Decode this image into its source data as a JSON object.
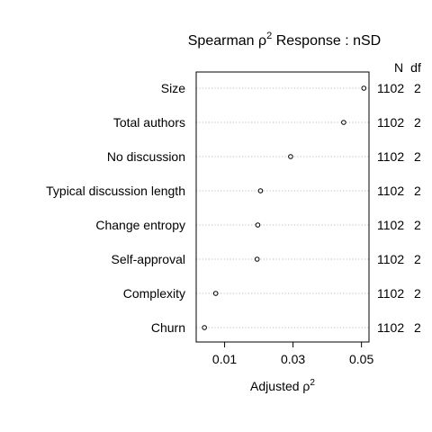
{
  "chart_data": {
    "type": "dot",
    "title": {
      "part1": "Spearman",
      "rho": "ρ",
      "sup": "2",
      "part2": "Response : nSD"
    },
    "xlabel": {
      "text": "Adjusted ",
      "rho": "ρ",
      "sup": "2"
    },
    "xlim": [
      0.0017,
      0.0522
    ],
    "xticks": [
      0.01,
      0.03,
      0.05
    ],
    "xtick_labels": [
      "0.01",
      "0.03",
      "0.05"
    ],
    "right_headers": {
      "n": "N",
      "df": "df"
    },
    "categories": [
      "Size",
      "Total authors",
      "No discussion",
      "Typical discussion length",
      "Change entropy",
      "Self-approval",
      "Complexity",
      "Churn"
    ],
    "values": [
      0.0507,
      0.0448,
      0.0293,
      0.0205,
      0.0197,
      0.0195,
      0.0074,
      0.0041
    ],
    "n": [
      "1102",
      "1102",
      "1102",
      "1102",
      "1102",
      "1102",
      "1102",
      "1102"
    ],
    "df": [
      "2",
      "2",
      "2",
      "2",
      "2",
      "2",
      "2",
      "2"
    ]
  }
}
